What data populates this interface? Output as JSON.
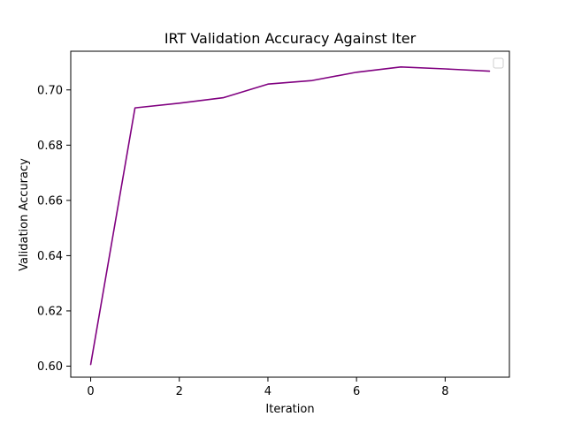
{
  "chart_data": {
    "type": "line",
    "title": "IRT Validation Accuracy Against Iter",
    "xlabel": "Iteration",
    "ylabel": "Validation Accuracy",
    "xlim": [
      -0.45,
      9.45
    ],
    "ylim": [
      0.596,
      0.714
    ],
    "xticks": [
      0,
      2,
      4,
      6,
      8
    ],
    "xtick_labels": [
      "0",
      "2",
      "4",
      "6",
      "8"
    ],
    "yticks": [
      0.6,
      0.62,
      0.64,
      0.66,
      0.68,
      0.7
    ],
    "ytick_labels": [
      "0.60",
      "0.62",
      "0.64",
      "0.66",
      "0.68",
      "0.70"
    ],
    "grid": false,
    "legend": "top-right",
    "series": [
      {
        "color": "#800080",
        "x": [
          0,
          1,
          2,
          3,
          4,
          5,
          6,
          7,
          8,
          9
        ],
        "values": [
          0.6006,
          0.6935,
          0.6952,
          0.6972,
          0.7021,
          0.7034,
          0.7064,
          0.7083,
          0.7076,
          0.7068
        ]
      }
    ]
  }
}
